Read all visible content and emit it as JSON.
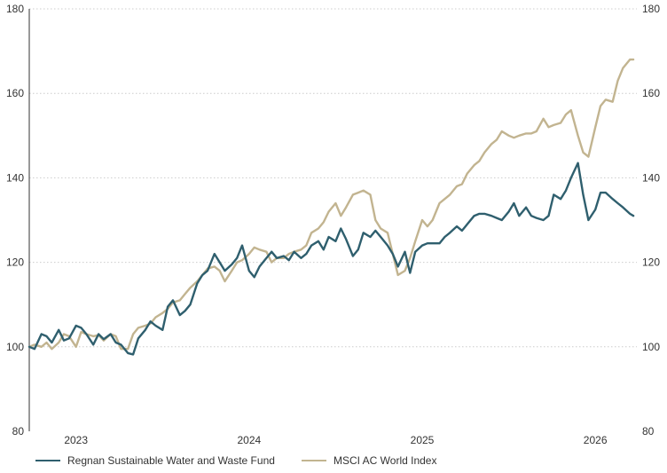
{
  "colors": {
    "fund": "#2f5f6e",
    "index": "#c2b490",
    "grid": "#cccccc",
    "axis": "#333333"
  },
  "legend": {
    "fund": "Regnan Sustainable Water and Waste Fund",
    "index": "MSCI AC World Index"
  },
  "chart_data": {
    "type": "line",
    "title": "",
    "xlabel": "",
    "ylabel": "",
    "ylim": [
      80,
      180
    ],
    "yticks": [
      80,
      100,
      120,
      140,
      160,
      180
    ],
    "xlim": [
      2022.73,
      2026.24
    ],
    "xticks": [
      {
        "label": "2023",
        "x": 2023.0
      },
      {
        "label": "2024",
        "x": 2024.0
      },
      {
        "label": "2025",
        "x": 2025.0
      },
      {
        "label": "2026",
        "x": 2026.0
      }
    ],
    "grid": true,
    "legend_position": "bottom",
    "series": [
      {
        "name": "Regnan Sustainable Water and Waste Fund",
        "color_key": "fund",
        "x": [
          2022.73,
          2022.76,
          2022.8,
          2022.83,
          2022.86,
          2022.9,
          2022.93,
          2022.96,
          2023.0,
          2023.03,
          2023.06,
          2023.1,
          2023.13,
          2023.16,
          2023.2,
          2023.23,
          2023.26,
          2023.3,
          2023.33,
          2023.36,
          2023.4,
          2023.43,
          2023.46,
          2023.5,
          2023.53,
          2023.56,
          2023.6,
          2023.63,
          2023.66,
          2023.7,
          2023.73,
          2023.76,
          2023.8,
          2023.83,
          2023.86,
          2023.9,
          2023.93,
          2023.96,
          2024.0,
          2024.03,
          2024.06,
          2024.1,
          2024.13,
          2024.16,
          2024.2,
          2024.23,
          2024.26,
          2024.3,
          2024.33,
          2024.36,
          2024.4,
          2024.43,
          2024.46,
          2024.5,
          2024.53,
          2024.56,
          2024.6,
          2024.63,
          2024.66,
          2024.7,
          2024.73,
          2024.76,
          2024.8,
          2024.83,
          2024.86,
          2024.9,
          2024.93,
          2024.96,
          2025.0,
          2025.03,
          2025.06,
          2025.1,
          2025.13,
          2025.16,
          2025.2,
          2025.23,
          2025.26,
          2025.3,
          2025.33,
          2025.36,
          2025.4,
          2025.43,
          2025.46,
          2025.5,
          2025.53,
          2025.56,
          2025.6,
          2025.63,
          2025.66,
          2025.7,
          2025.73,
          2025.76,
          2025.8,
          2025.83,
          2025.86,
          2025.9,
          2025.93,
          2025.96,
          2026.0,
          2026.03,
          2026.06,
          2026.1,
          2026.13,
          2026.16,
          2026.2,
          2026.22
        ],
        "y": [
          100,
          99.5,
          103,
          102.5,
          101,
          104,
          101.5,
          102,
          105,
          104.5,
          103,
          100.5,
          103,
          101.8,
          103,
          101,
          100.5,
          98.5,
          98.2,
          102,
          104,
          106,
          105,
          104,
          109.5,
          111,
          107.5,
          108.5,
          110,
          115,
          117,
          118,
          122,
          120,
          118,
          119.5,
          121,
          124,
          118,
          116.5,
          119,
          121,
          122.5,
          121,
          121.5,
          120.5,
          122.5,
          121,
          122,
          124,
          125,
          123,
          126,
          125,
          128,
          125.5,
          121.5,
          123,
          127,
          126,
          127.5,
          126,
          124,
          122,
          119,
          122.5,
          117.5,
          122.5,
          124,
          124.5,
          124.5,
          124.5,
          126,
          127,
          128.5,
          127.5,
          129,
          131,
          131.5,
          131.5,
          131,
          130.5,
          130,
          132,
          134,
          131,
          133,
          131,
          130.5,
          130,
          131,
          136,
          135,
          137,
          140,
          143.5,
          136,
          130,
          132.5,
          136.5,
          136.5,
          135,
          134,
          133,
          131.5,
          131
        ]
      },
      {
        "name": "MSCI AC World Index",
        "color_key": "index",
        "x": [
          2022.73,
          2022.76,
          2022.8,
          2022.83,
          2022.86,
          2022.9,
          2022.93,
          2022.96,
          2023.0,
          2023.03,
          2023.06,
          2023.1,
          2023.13,
          2023.16,
          2023.2,
          2023.23,
          2023.26,
          2023.3,
          2023.33,
          2023.36,
          2023.4,
          2023.43,
          2023.46,
          2023.5,
          2023.53,
          2023.56,
          2023.6,
          2023.63,
          2023.66,
          2023.7,
          2023.73,
          2023.76,
          2023.8,
          2023.83,
          2023.86,
          2023.9,
          2023.93,
          2023.96,
          2024.0,
          2024.03,
          2024.06,
          2024.1,
          2024.13,
          2024.16,
          2024.2,
          2024.23,
          2024.26,
          2024.3,
          2024.33,
          2024.36,
          2024.4,
          2024.43,
          2024.46,
          2024.5,
          2024.53,
          2024.56,
          2024.6,
          2024.63,
          2024.66,
          2024.7,
          2024.73,
          2024.76,
          2024.8,
          2024.83,
          2024.86,
          2024.9,
          2024.93,
          2024.96,
          2025.0,
          2025.03,
          2025.06,
          2025.1,
          2025.13,
          2025.16,
          2025.2,
          2025.23,
          2025.26,
          2025.3,
          2025.33,
          2025.36,
          2025.4,
          2025.43,
          2025.46,
          2025.5,
          2025.53,
          2025.56,
          2025.6,
          2025.63,
          2025.66,
          2025.7,
          2025.73,
          2025.76,
          2025.8,
          2025.83,
          2025.86,
          2025.9,
          2025.93,
          2025.96,
          2026.0,
          2026.03,
          2026.06,
          2026.1,
          2026.13,
          2026.16,
          2026.2,
          2026.22
        ],
        "y": [
          100,
          100.5,
          100,
          101,
          99.5,
          101,
          103,
          102.5,
          100,
          103.5,
          103,
          102.5,
          102.8,
          101.5,
          103,
          102.5,
          99.5,
          99.5,
          103,
          104.5,
          105,
          105.5,
          107,
          108,
          109,
          110.5,
          111,
          112.5,
          114,
          115.5,
          117,
          118.5,
          119,
          118,
          115.5,
          118,
          120,
          120.5,
          122,
          123.5,
          123,
          122.5,
          120,
          121,
          121,
          122,
          122.5,
          123,
          124,
          127,
          128,
          129.5,
          132,
          134,
          131,
          133,
          136,
          136.5,
          137,
          136,
          130,
          128,
          127,
          122,
          117,
          118,
          121,
          125,
          130,
          128.5,
          130,
          134,
          135,
          136,
          138,
          138.5,
          141,
          143,
          144,
          146,
          148,
          149,
          151,
          150,
          149.5,
          150,
          150.5,
          150.5,
          151,
          154,
          152,
          152.5,
          153,
          155,
          156,
          150,
          146,
          145,
          152,
          157,
          158.5,
          158,
          163,
          166,
          168,
          168
        ]
      }
    ]
  }
}
